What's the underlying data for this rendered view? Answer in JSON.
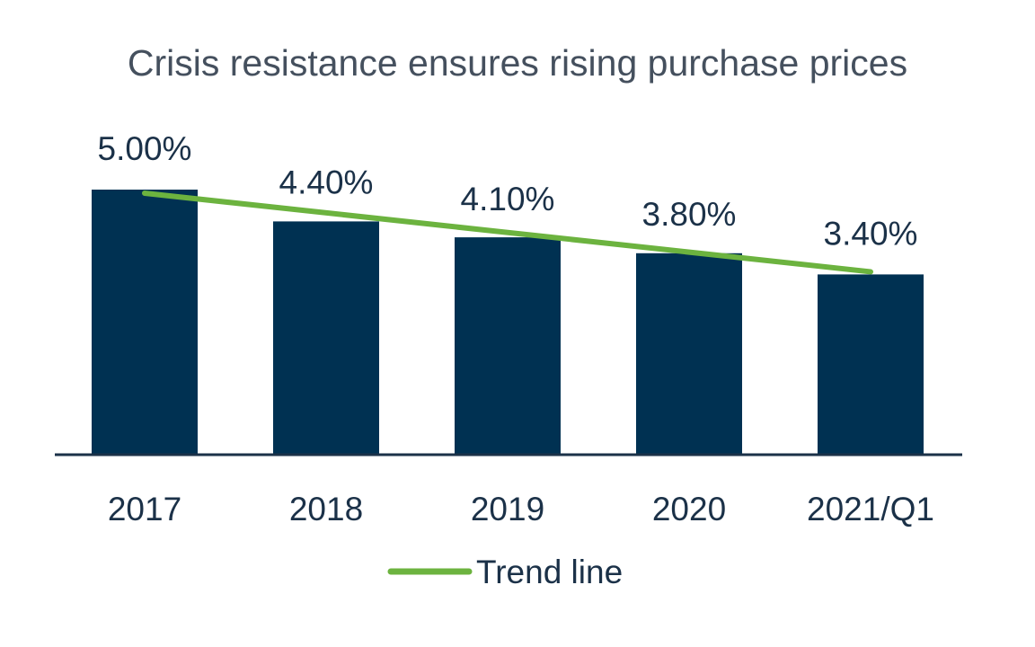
{
  "colors": {
    "bar": "#003152",
    "trend": "#6cb33f",
    "axis": "#1b3148",
    "title": "#45505e",
    "text": "#1b3148"
  },
  "chart_data": {
    "type": "bar",
    "title": "Crisis resistance ensures rising purchase prices",
    "categories": [
      "2017",
      "2018",
      "2019",
      "2020",
      "2021/Q1"
    ],
    "values": [
      5.0,
      4.4,
      4.1,
      3.8,
      3.4
    ],
    "value_labels": [
      "5.00%",
      "4.40%",
      "4.10%",
      "3.80%",
      "3.40%"
    ],
    "ylim": [
      0,
      5.0
    ],
    "grid": false,
    "trend_line": {
      "name": "Trend line",
      "start": 5.0,
      "end": 3.45
    },
    "legend": {
      "position": "bottom",
      "entries": [
        "Trend line"
      ]
    }
  }
}
